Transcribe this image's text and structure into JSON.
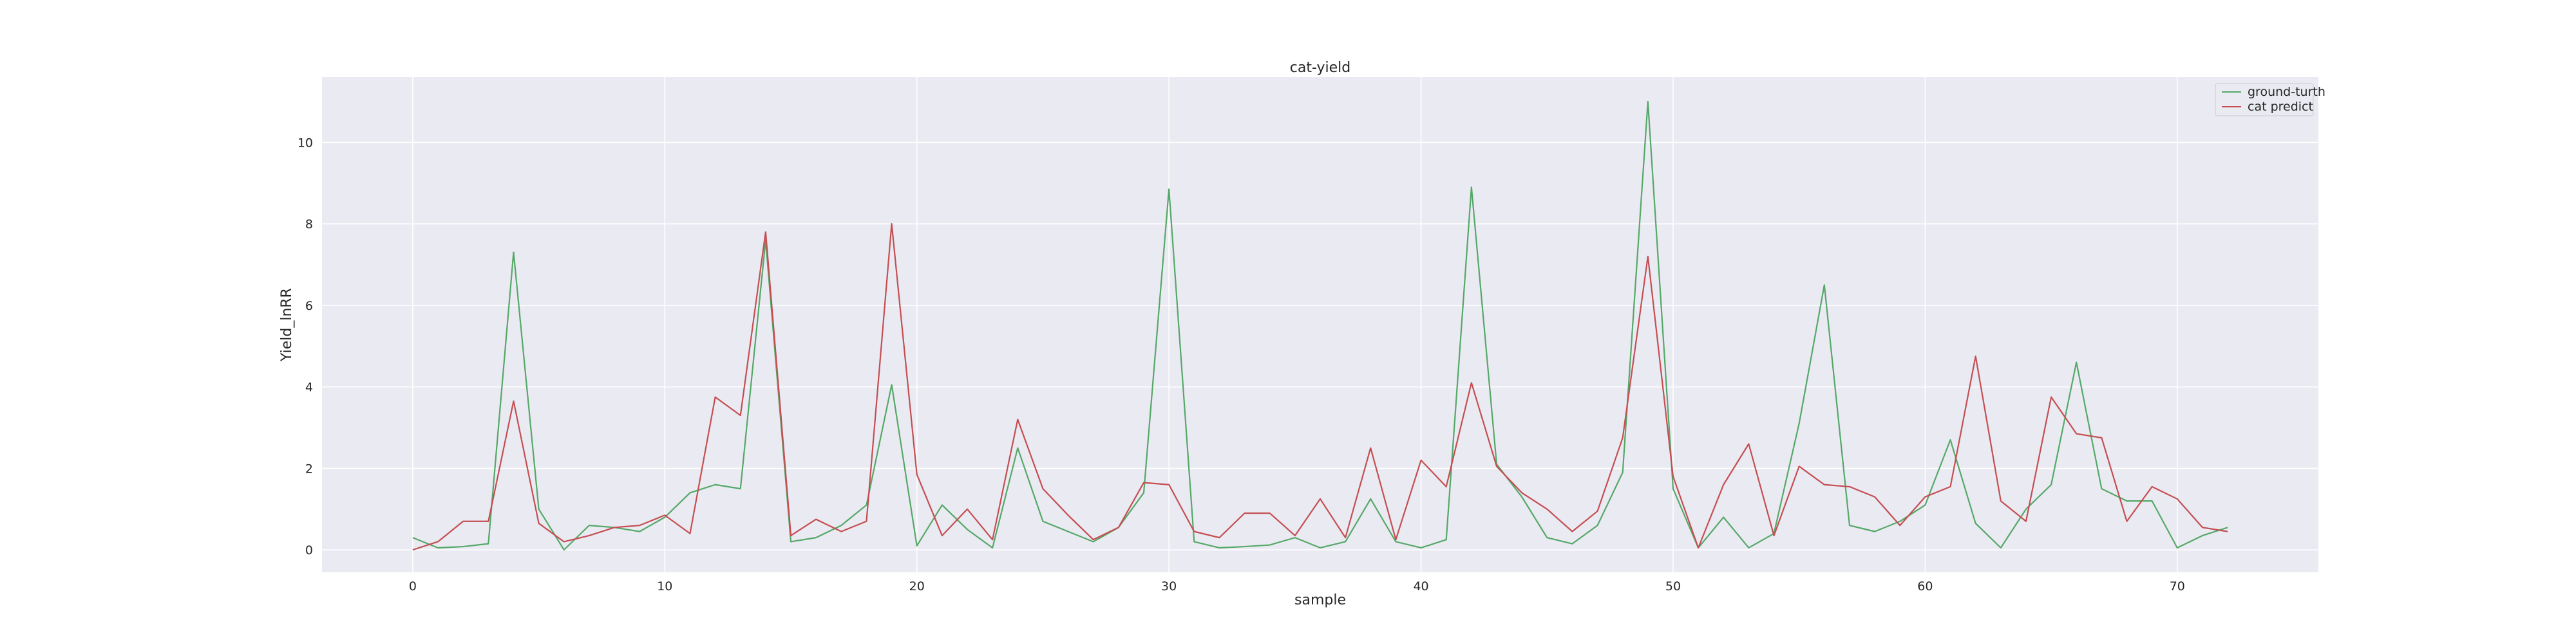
{
  "chart_data": {
    "type": "line",
    "title": "cat-yield",
    "xlabel": "sample",
    "ylabel": "Yield_lnRR",
    "xlim": [
      -3.6,
      75.6
    ],
    "ylim": [
      -0.55,
      11.6
    ],
    "xticks": [
      0,
      10,
      20,
      30,
      40,
      50,
      60,
      70
    ],
    "yticks": [
      0,
      2,
      4,
      6,
      8,
      10
    ],
    "grid": true,
    "legend_position": "top-right",
    "background": "#EAEAF2",
    "x": [
      0,
      1,
      2,
      3,
      4,
      5,
      6,
      7,
      8,
      9,
      10,
      11,
      12,
      13,
      14,
      15,
      16,
      17,
      18,
      19,
      20,
      21,
      22,
      23,
      24,
      25,
      26,
      27,
      28,
      29,
      30,
      31,
      32,
      33,
      34,
      35,
      36,
      37,
      38,
      39,
      40,
      41,
      42,
      43,
      44,
      45,
      46,
      47,
      48,
      49,
      50,
      51,
      52,
      53,
      54,
      55,
      56,
      57,
      58,
      59,
      60,
      61,
      62,
      63,
      64,
      65,
      66,
      67,
      68,
      69,
      70,
      71,
      72
    ],
    "series": [
      {
        "name": "ground-turth",
        "color": "#55A868",
        "values": [
          0.3,
          0.05,
          0.08,
          0.15,
          7.3,
          1.0,
          0.0,
          0.6,
          0.55,
          0.45,
          0.8,
          1.4,
          1.6,
          1.5,
          7.6,
          0.2,
          0.3,
          0.6,
          1.1,
          4.05,
          0.1,
          1.1,
          0.5,
          0.05,
          2.5,
          0.7,
          0.45,
          0.2,
          0.55,
          1.4,
          8.85,
          0.2,
          0.05,
          0.08,
          0.12,
          0.3,
          0.05,
          0.2,
          1.25,
          0.2,
          0.05,
          0.25,
          8.9,
          2.1,
          1.3,
          0.3,
          0.15,
          0.6,
          1.9,
          11.0,
          1.5,
          0.05,
          0.8,
          0.05,
          0.4,
          3.1,
          6.5,
          0.6,
          0.45,
          0.7,
          1.1,
          2.7,
          0.65,
          0.05,
          1.0,
          1.6,
          4.6,
          1.5,
          1.2,
          1.2,
          0.05,
          0.35,
          0.55
        ]
      },
      {
        "name": "cat predict",
        "color": "#C44E52",
        "values": [
          0.0,
          0.2,
          0.7,
          0.7,
          3.65,
          0.65,
          0.2,
          0.35,
          0.55,
          0.6,
          0.85,
          0.4,
          3.75,
          3.3,
          7.8,
          0.35,
          0.75,
          0.45,
          0.7,
          8.0,
          1.85,
          0.35,
          1.0,
          0.25,
          3.2,
          1.5,
          0.85,
          0.25,
          0.55,
          1.65,
          1.6,
          0.45,
          0.3,
          0.9,
          0.9,
          0.35,
          1.25,
          0.3,
          2.5,
          0.25,
          2.2,
          1.55,
          4.1,
          2.05,
          1.4,
          1.0,
          0.45,
          0.95,
          2.75,
          7.2,
          1.8,
          0.05,
          1.6,
          2.6,
          0.35,
          2.05,
          1.6,
          1.55,
          1.3,
          0.6,
          1.3,
          1.55,
          4.75,
          1.2,
          0.7,
          3.75,
          2.85,
          2.75,
          0.7,
          1.55,
          1.25,
          0.55,
          0.45
        ]
      }
    ]
  }
}
